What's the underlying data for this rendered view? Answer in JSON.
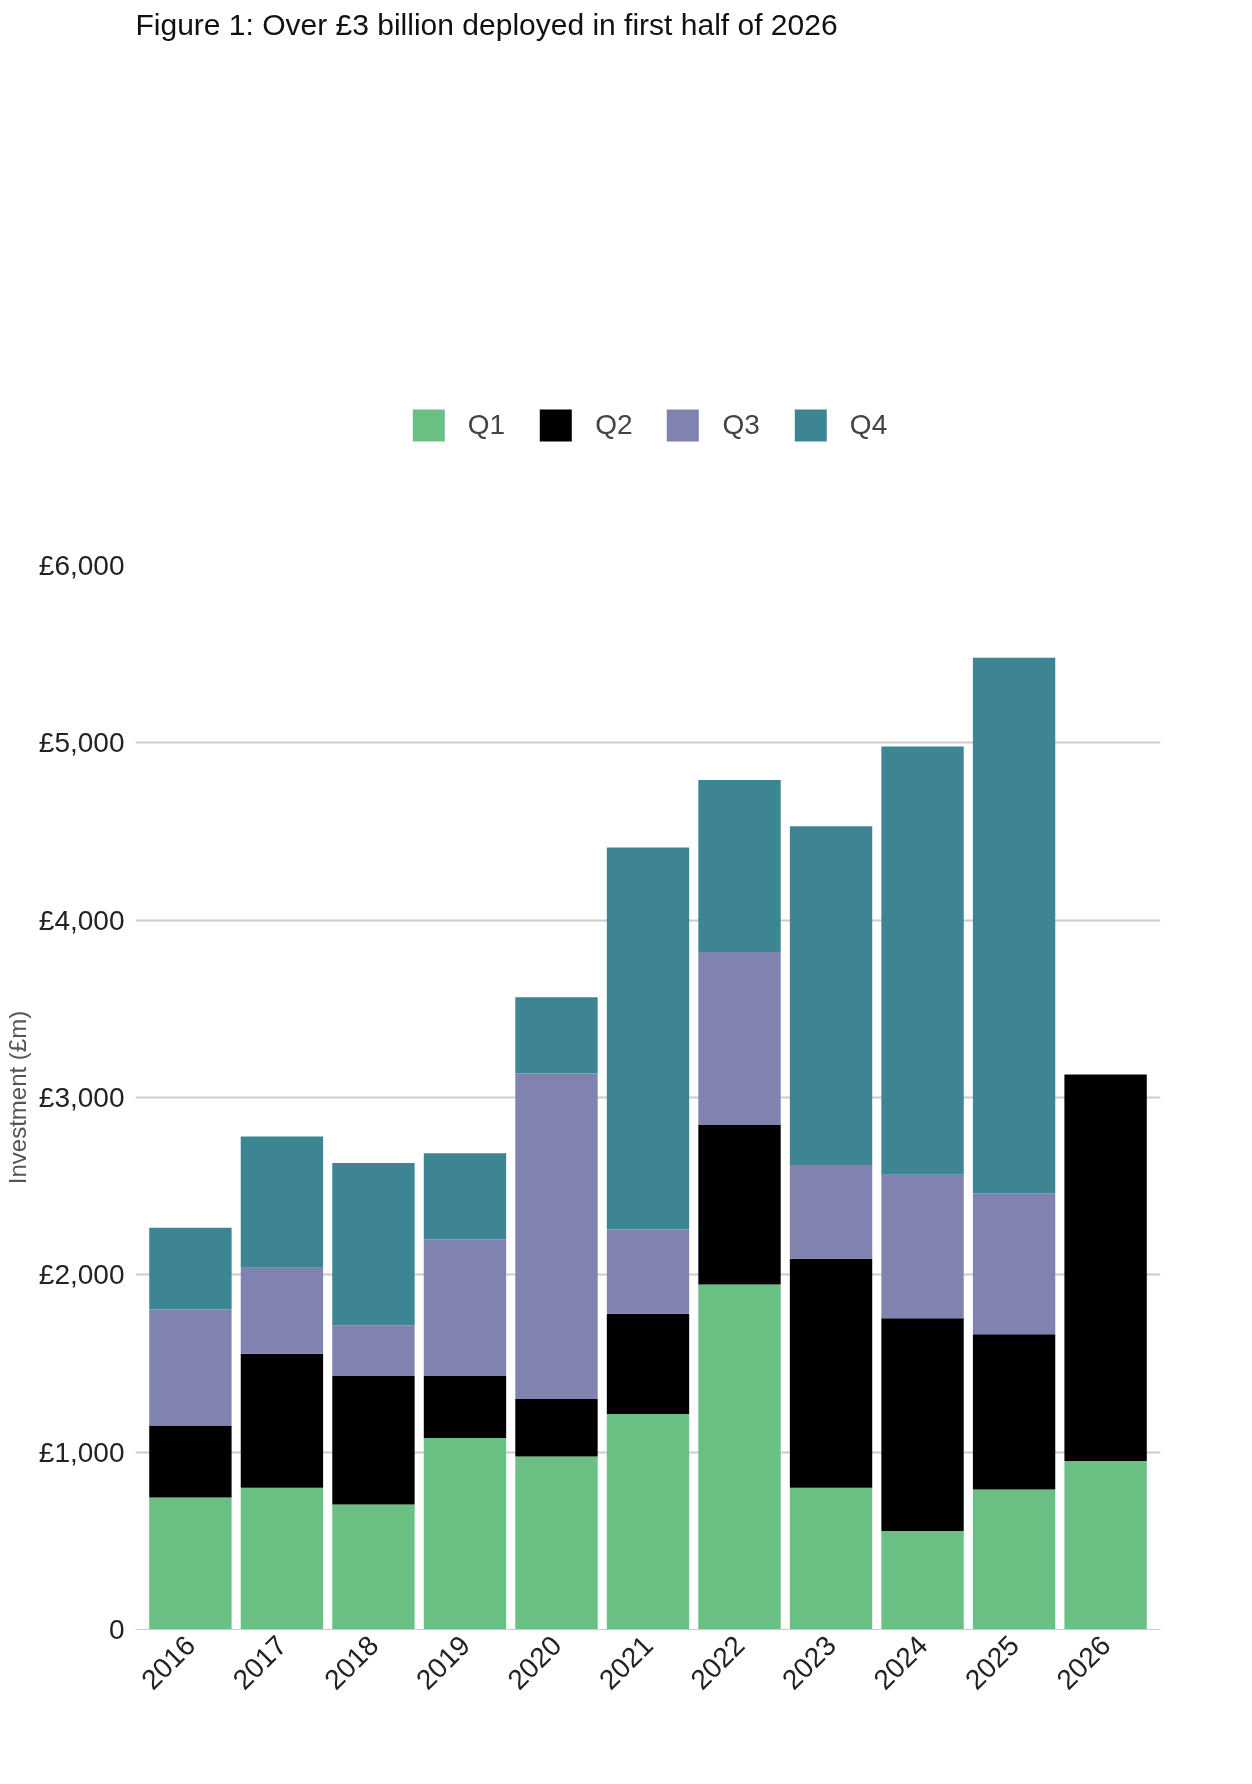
{
  "chart_data": {
    "type": "bar",
    "title": "Figure 1: Over £3 billion deployed in first half of 2026",
    "ylabel": "Investment (£m)",
    "stacked": true,
    "categories": [
      "2016",
      "2017",
      "2018",
      "2019",
      "2020",
      "2021",
      "2022",
      "2023",
      "2024",
      "2025",
      "2026"
    ],
    "series": [
      {
        "name": "Q1",
        "color": "#6abf83",
        "values": [
          745,
          800,
          705,
          1080,
          975,
          1215,
          1945,
          800,
          555,
          790,
          950
        ]
      },
      {
        "name": "Q2",
        "color": "#000000",
        "values": [
          405,
          755,
          725,
          350,
          325,
          565,
          900,
          1290,
          1200,
          875,
          2180
        ]
      },
      {
        "name": "Q3",
        "color": "#8083b0",
        "values": [
          655,
          485,
          285,
          770,
          1835,
          475,
          975,
          530,
          810,
          795,
          null
        ]
      },
      {
        "name": "Q4",
        "color": "#3d8592",
        "values": [
          460,
          740,
          915,
          485,
          430,
          2155,
          970,
          1910,
          2415,
          3020,
          null
        ]
      }
    ],
    "ylim": [
      0,
      6000
    ],
    "yticks": [
      {
        "value": 0,
        "label": "0"
      },
      {
        "value": 1000,
        "label": "£1,000"
      },
      {
        "value": 2000,
        "label": "£2,000"
      },
      {
        "value": 3000,
        "label": "£3,000"
      },
      {
        "value": 4000,
        "label": "£4,000"
      },
      {
        "value": 5000,
        "label": "£5,000"
      },
      {
        "value": 6000,
        "label": "£6,000"
      }
    ],
    "grid": "y",
    "legend": "top"
  }
}
